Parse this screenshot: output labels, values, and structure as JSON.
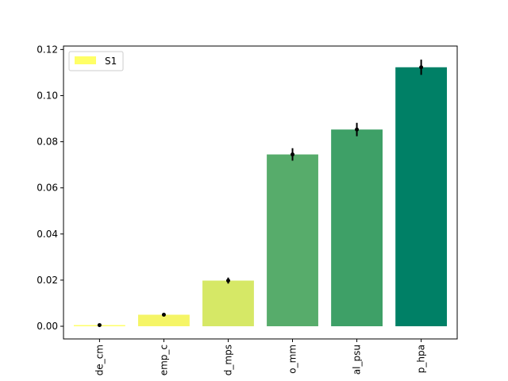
{
  "chart_data": {
    "type": "bar",
    "categories": [
      "de_cm",
      "emp_c",
      "d_mps",
      "o_mm",
      "al_psu",
      "p_hpa"
    ],
    "series": [
      {
        "name": "S1",
        "values": [
          0.0005,
          0.005,
          0.0198,
          0.0745,
          0.0853,
          0.1123
        ],
        "errors": [
          0.0003,
          0.0007,
          0.0013,
          0.0027,
          0.0029,
          0.0033
        ],
        "colors": [
          "#ffff66",
          "#f5f566",
          "#d6e866",
          "#57ac6b",
          "#3ea067",
          "#008066"
        ]
      }
    ],
    "yticks": [
      "0.00",
      "0.02",
      "0.04",
      "0.06",
      "0.08",
      "0.10",
      "0.12"
    ],
    "ylim": [
      -0.0055,
      0.1215
    ],
    "title": "",
    "xlabel": "",
    "ylabel": "",
    "legend": {
      "label": "S1",
      "color": "#ffff66",
      "position": "top-left"
    },
    "grid": false
  }
}
